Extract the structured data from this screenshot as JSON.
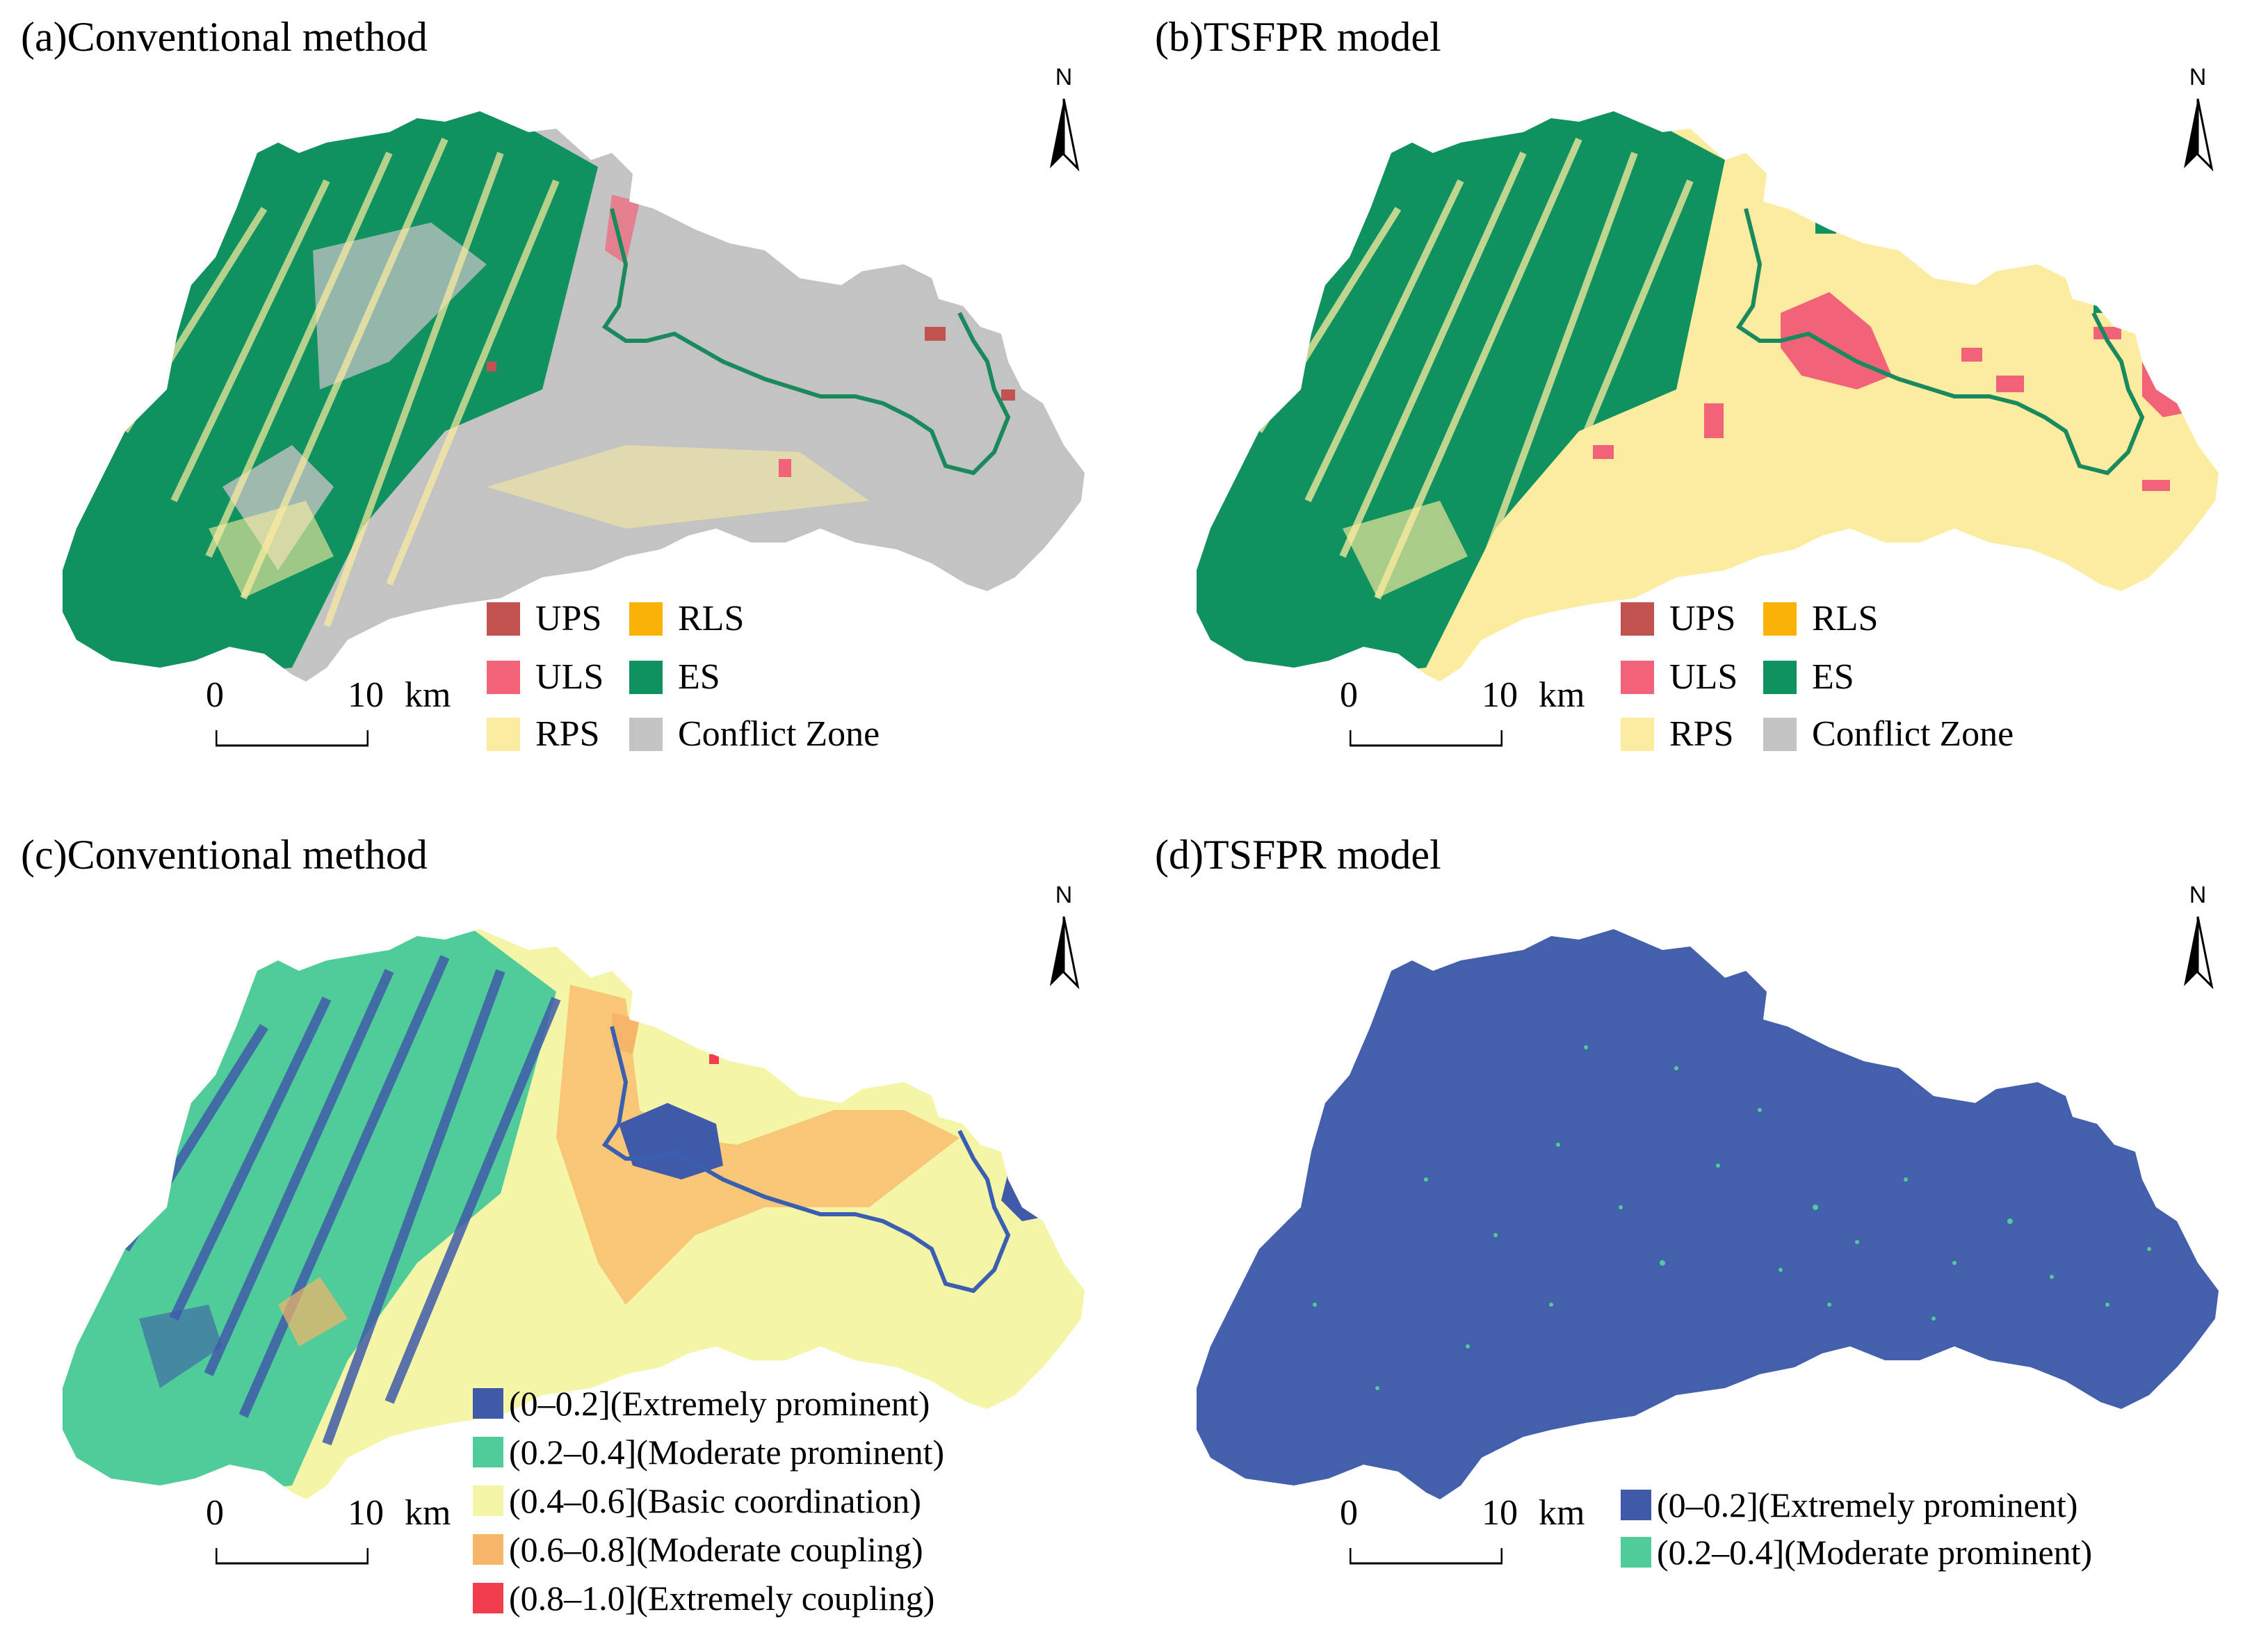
{
  "colors": {
    "UPS": "#c1524f",
    "ULS": "#f2637a",
    "RPS": "#fcec9f",
    "RLS": "#f9b308",
    "ES": "#0f9160",
    "Conflict Zone": "#c3c3c3",
    "river_es": "#1a8a5e",
    "river_blue": "#3b5fb0",
    "c1": "#3f5aa8",
    "c2": "#4fcc9a",
    "c3": "#f5f5a8",
    "c4": "#f7b567",
    "c5": "#f23d4d"
  },
  "north_arrow": "N",
  "scale": {
    "start": "0",
    "end": "10",
    "unit": "km"
  },
  "panels": [
    {
      "title": "(a)Conventional method",
      "legend": [
        {
          "label": "UPS",
          "color": "#c1524f"
        },
        {
          "label": "RLS",
          "color": "#f9b308"
        },
        {
          "label": "ULS",
          "color": "#f2637a"
        },
        {
          "label": "ES",
          "color": "#0f9160"
        },
        {
          "label": "RPS",
          "color": "#fcec9f"
        },
        {
          "label": "Conflict Zone",
          "color": "#c3c3c3"
        }
      ]
    },
    {
      "title": "(b)TSFPR model",
      "legend": [
        {
          "label": "UPS",
          "color": "#c1524f"
        },
        {
          "label": "RLS",
          "color": "#f9b308"
        },
        {
          "label": "ULS",
          "color": "#f2637a"
        },
        {
          "label": "ES",
          "color": "#0f9160"
        },
        {
          "label": "RPS",
          "color": "#fcec9f"
        },
        {
          "label": "Conflict Zone",
          "color": "#c3c3c3"
        }
      ]
    },
    {
      "title": "(c)Conventional method",
      "legend": [
        {
          "label": "(0–0.2](Extremely prominent)",
          "color": "#3f5aa8"
        },
        {
          "label": "(0.2–0.4](Moderate prominent)",
          "color": "#4fcc9a"
        },
        {
          "label": "(0.4–0.6](Basic coordination)",
          "color": "#f5f5a8"
        },
        {
          "label": "(0.6–0.8](Moderate coupling)",
          "color": "#f7b567"
        },
        {
          "label": "(0.8–1.0](Extremely coupling)",
          "color": "#f23d4d"
        }
      ]
    },
    {
      "title": "(d)TSFPR model",
      "legend": [
        {
          "label": "(0–0.2](Extremely prominent)",
          "color": "#3f5aa8"
        },
        {
          "label": "(0.2–0.4](Moderate prominent)",
          "color": "#4fcc9a"
        }
      ]
    }
  ]
}
